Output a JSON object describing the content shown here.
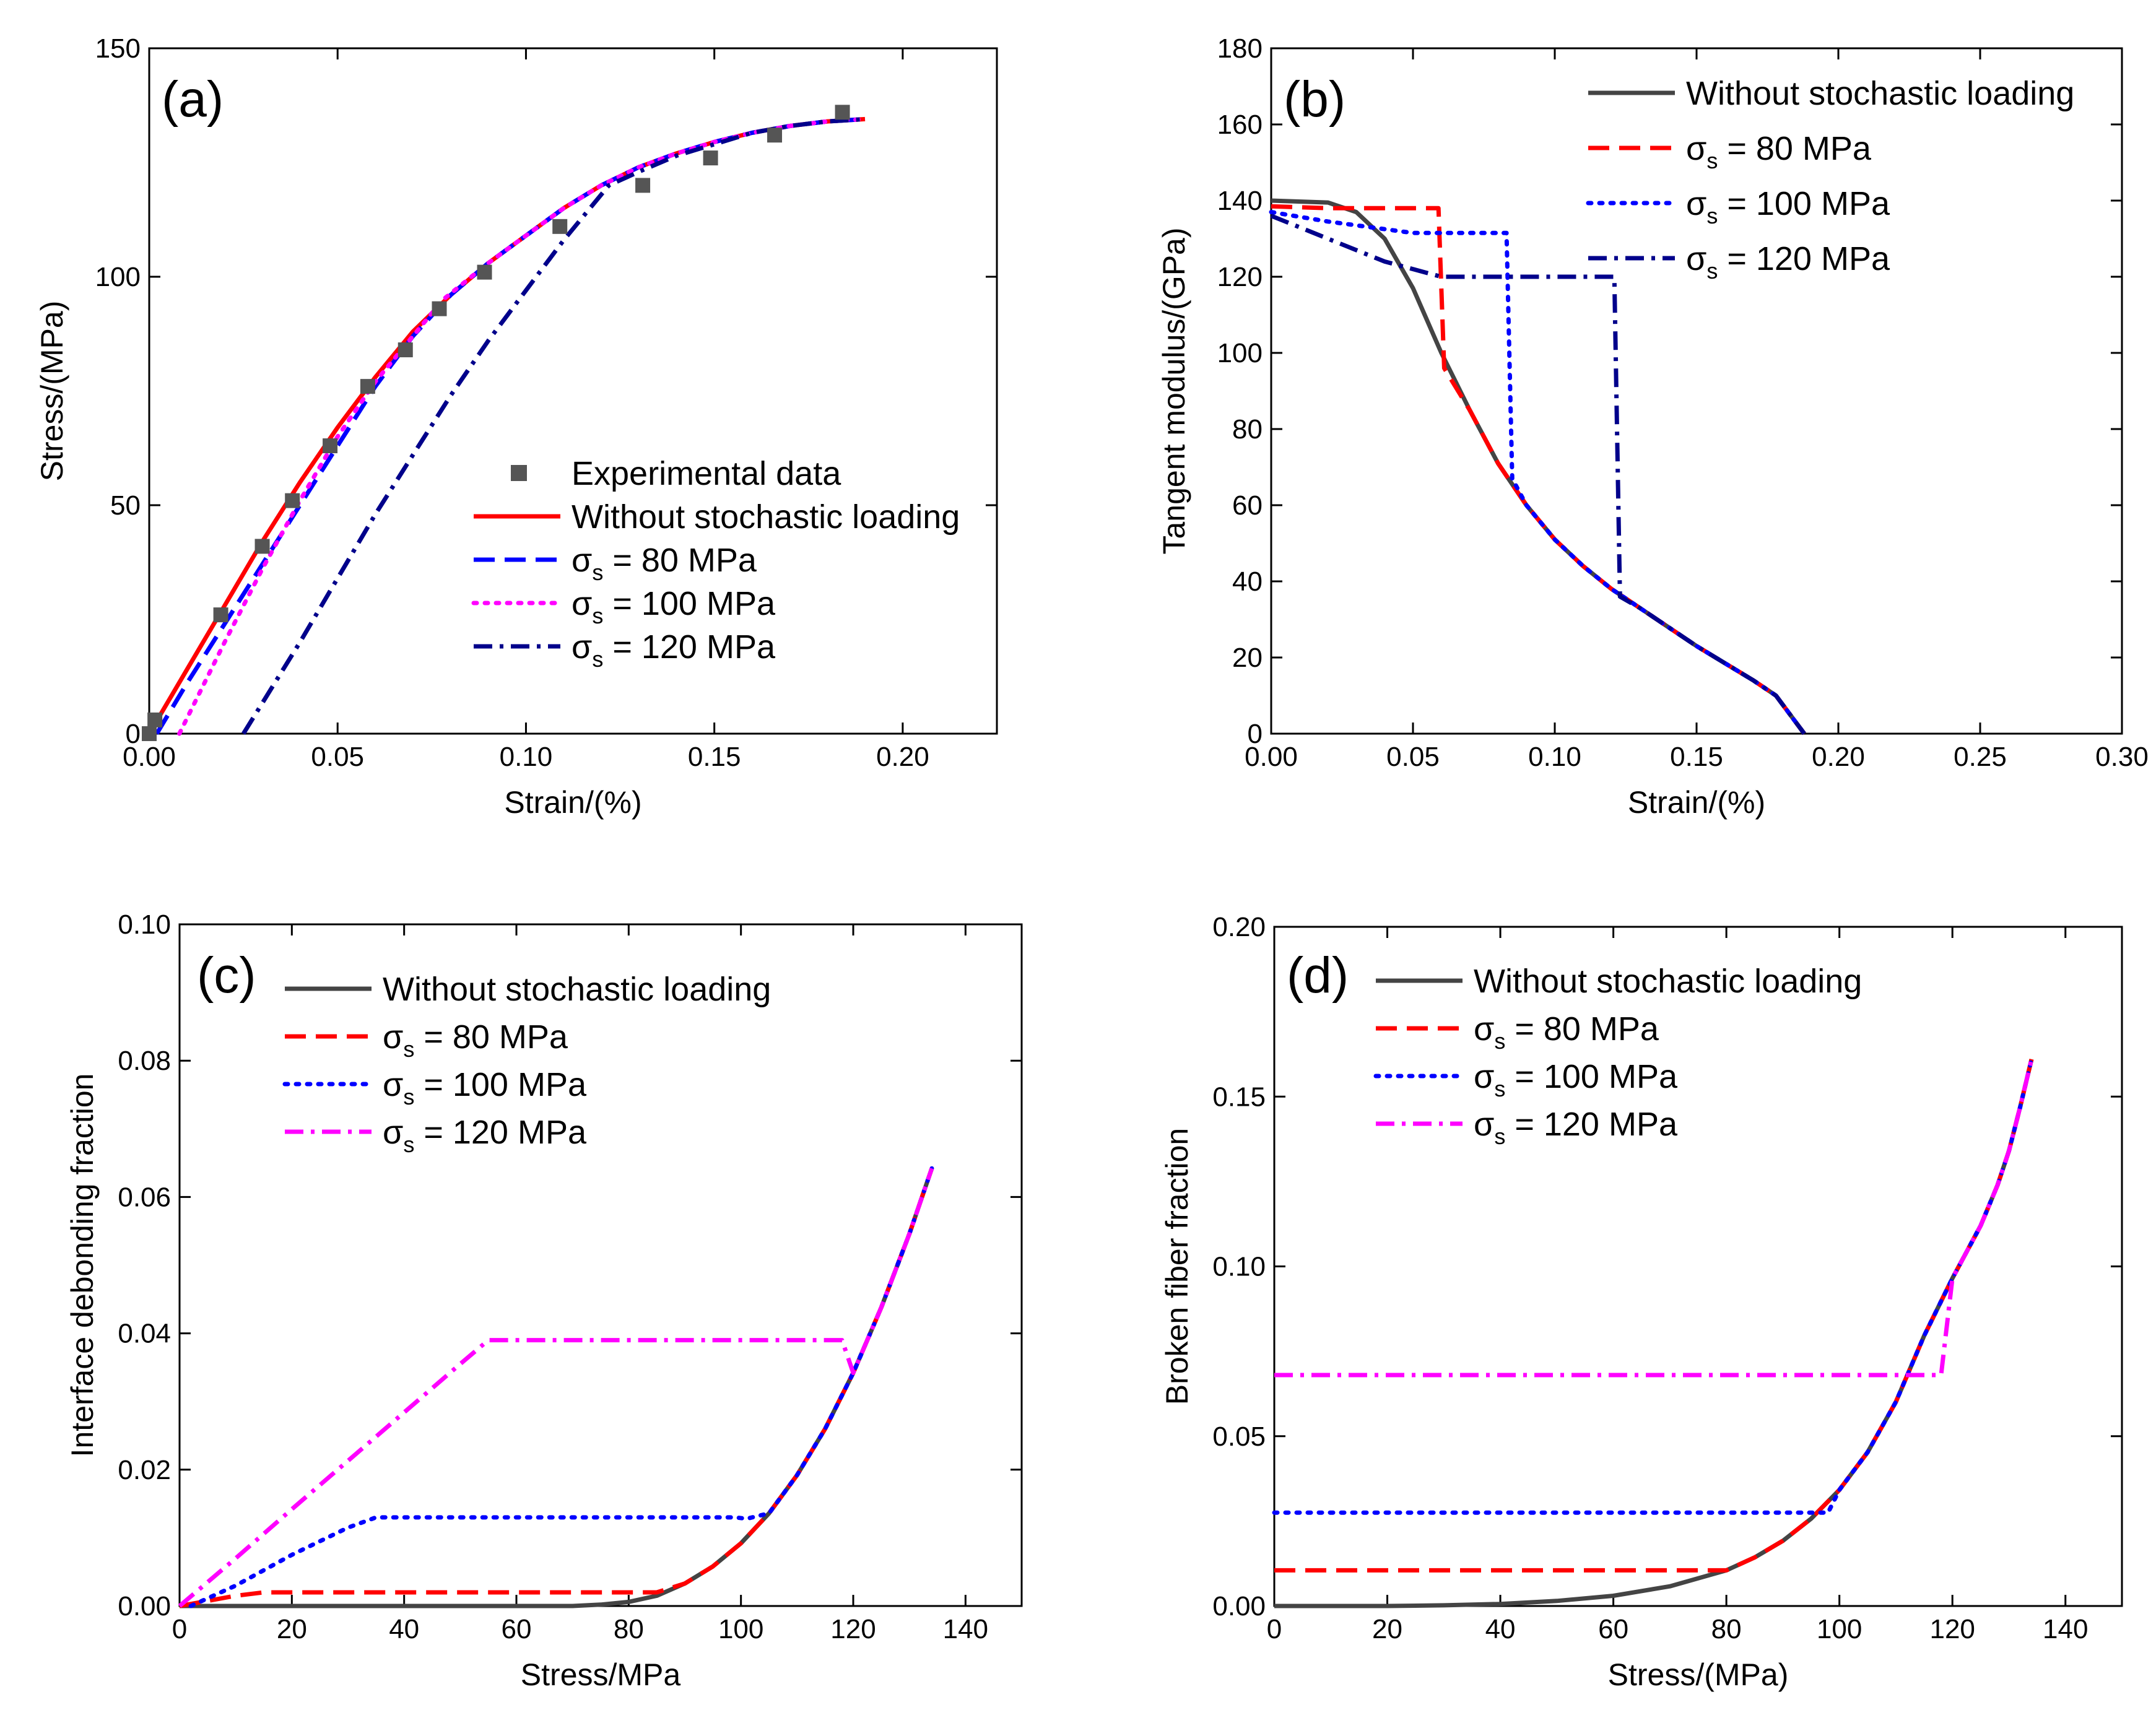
{
  "figure": {
    "colors": {
      "red": "#ff0000",
      "blue": "#0000ff",
      "magenta": "#ff00ff",
      "navy": "#00008b",
      "gray": "#444444",
      "exp": "#555555"
    }
  },
  "chart_data": [
    {
      "id": "a",
      "type": "line",
      "panel_label": "(a)",
      "xlabel": "Strain/(%)",
      "ylabel": "Stress/(MPa)",
      "xlim": [
        0,
        0.225
      ],
      "ylim": [
        0,
        150
      ],
      "xticks": [
        0,
        0.05,
        0.1,
        0.15,
        0.2
      ],
      "xtick_labels": [
        "0.00",
        "0.05",
        "0.10",
        "0.15",
        "0.20"
      ],
      "yticks": [
        0,
        50,
        100,
        150
      ],
      "ytick_labels": [
        "0",
        "50",
        "100",
        "150"
      ],
      "legend_position": "bottom-right",
      "scatter": {
        "name": "Experimental data",
        "color": "#555555",
        "x": [
          0.0,
          0.0015,
          0.019,
          0.03,
          0.038,
          0.048,
          0.058,
          0.068,
          0.077,
          0.089,
          0.109,
          0.131,
          0.149,
          0.166,
          0.184
        ],
        "y": [
          0,
          3,
          26,
          41,
          51,
          63,
          76,
          84,
          93,
          101,
          111,
          120,
          126,
          131,
          136
        ]
      },
      "series": [
        {
          "name": "Without stochastic loading",
          "color": "#ff0000",
          "dash": "solid",
          "x": [
            0.0,
            0.01,
            0.02,
            0.03,
            0.04,
            0.05,
            0.06,
            0.07,
            0.08,
            0.09,
            0.1,
            0.11,
            0.12,
            0.13,
            0.14,
            0.15,
            0.16,
            0.17,
            0.18,
            0.19
          ],
          "y": [
            0,
            14,
            28,
            42,
            55,
            67,
            78,
            88,
            96,
            103,
            109,
            115,
            120,
            124,
            127,
            129.5,
            131.5,
            133,
            134,
            134.5
          ]
        },
        {
          "name": "σs = 80 MPa",
          "color": "#0000ff",
          "dash": "dashed",
          "x": [
            0.002,
            0.01,
            0.02,
            0.03,
            0.04,
            0.05,
            0.06,
            0.07,
            0.08,
            0.09,
            0.1,
            0.11,
            0.12,
            0.13,
            0.14,
            0.15,
            0.16,
            0.17,
            0.18,
            0.19
          ],
          "y": [
            0,
            11,
            24,
            37,
            50,
            63,
            76,
            87,
            96,
            103,
            109,
            115,
            120,
            124,
            127,
            129.5,
            131.5,
            133,
            134,
            134.5
          ]
        },
        {
          "name": "σs = 100 MPa",
          "color": "#ff00ff",
          "dash": "dotted",
          "x": [
            0.008,
            0.02,
            0.03,
            0.04,
            0.05,
            0.06,
            0.07,
            0.078,
            0.09,
            0.1,
            0.11,
            0.12,
            0.13,
            0.14,
            0.15,
            0.16,
            0.17,
            0.18,
            0.19
          ],
          "y": [
            0,
            20,
            36,
            51,
            65,
            77,
            87,
            95,
            103,
            109,
            115,
            120,
            124,
            127,
            129.5,
            131.5,
            133,
            134,
            134.5
          ]
        },
        {
          "name": "σs = 120 MPa",
          "color": "#00008b",
          "dash": "dashdot",
          "x": [
            0.025,
            0.04,
            0.05,
            0.06,
            0.07,
            0.08,
            0.09,
            0.1,
            0.11,
            0.122,
            0.13,
            0.14,
            0.15,
            0.16,
            0.17,
            0.18,
            0.19
          ],
          "y": [
            0,
            20,
            34,
            48,
            61,
            74,
            86,
            97,
            108,
            120,
            123,
            126.5,
            129,
            131.5,
            133,
            134,
            134.5
          ]
        }
      ],
      "legend": [
        {
          "kind": "marker",
          "label": "Experimental data",
          "color": "#555555"
        },
        {
          "kind": "line",
          "label": "Without stochastic loading",
          "color": "#ff0000",
          "dash": "solid"
        },
        {
          "kind": "line",
          "label": "= 80 MPa",
          "color": "#0000ff",
          "dash": "dashed",
          "sigma": true
        },
        {
          "kind": "line",
          "label": "= 100 MPa",
          "color": "#ff00ff",
          "dash": "dotted",
          "sigma": true
        },
        {
          "kind": "line",
          "label": "= 120 MPa",
          "color": "#00008b",
          "dash": "dashdot",
          "sigma": true
        }
      ]
    },
    {
      "id": "b",
      "type": "line",
      "panel_label": "(b)",
      "xlabel": "Strain/(%)",
      "ylabel": "Tangent modulus/(GPa)",
      "xlim": [
        0,
        0.3
      ],
      "ylim": [
        0,
        180
      ],
      "xticks": [
        0,
        0.05,
        0.1,
        0.15,
        0.2,
        0.25,
        0.3
      ],
      "xtick_labels": [
        "0.00",
        "0.05",
        "0.10",
        "0.15",
        "0.20",
        "0.25",
        "0.30"
      ],
      "yticks": [
        0,
        20,
        40,
        60,
        80,
        100,
        120,
        140,
        160,
        180
      ],
      "ytick_labels": [
        "0",
        "20",
        "40",
        "60",
        "80",
        "100",
        "120",
        "140",
        "160",
        "180"
      ],
      "legend_position": "top-right",
      "series": [
        {
          "name": "Without stochastic loading",
          "color": "#444444",
          "dash": "solid",
          "x": [
            0.0,
            0.02,
            0.03,
            0.04,
            0.05,
            0.06,
            0.07,
            0.08,
            0.09,
            0.1,
            0.11,
            0.12,
            0.13,
            0.14,
            0.15,
            0.16,
            0.17,
            0.178,
            0.188
          ],
          "y": [
            140,
            139.5,
            137,
            130,
            117,
            100,
            85,
            71,
            60,
            51,
            44,
            38,
            33,
            28,
            23,
            18.5,
            14,
            10,
            0
          ]
        },
        {
          "name": "σs = 80 MPa",
          "color": "#ff0000",
          "dash": "dashed",
          "x": [
            0.0,
            0.02,
            0.059,
            0.059,
            0.061,
            0.07,
            0.08,
            0.09,
            0.1,
            0.11,
            0.12,
            0.13,
            0.14,
            0.15,
            0.16,
            0.17,
            0.178,
            0.188
          ],
          "y": [
            138.5,
            138,
            138,
            138,
            96,
            85,
            71,
            60,
            51,
            44,
            38,
            33,
            28,
            23,
            18.5,
            14,
            10,
            0
          ]
        },
        {
          "name": "σs = 100 MPa",
          "color": "#0000ff",
          "dash": "dotted",
          "x": [
            0.0,
            0.02,
            0.04,
            0.05,
            0.083,
            0.085,
            0.09,
            0.1,
            0.11,
            0.12,
            0.13,
            0.14,
            0.15,
            0.16,
            0.17,
            0.178,
            0.188
          ],
          "y": [
            137,
            134.5,
            132.5,
            131.5,
            131.5,
            67,
            60,
            51,
            44,
            38,
            33,
            28,
            23,
            18.5,
            14,
            10,
            0
          ]
        },
        {
          "name": "σs = 120 MPa",
          "color": "#00008b",
          "dash": "dashdot",
          "x": [
            0.0,
            0.02,
            0.04,
            0.06,
            0.121,
            0.123,
            0.13,
            0.14,
            0.15,
            0.16,
            0.17,
            0.178,
            0.188
          ],
          "y": [
            136,
            130,
            124,
            120,
            120,
            36,
            33,
            28,
            23,
            18.5,
            14,
            10,
            0
          ]
        }
      ],
      "legend": [
        {
          "kind": "line",
          "label": "Without stochastic loading",
          "color": "#444444",
          "dash": "solid"
        },
        {
          "kind": "line",
          "label": "= 80 MPa",
          "color": "#ff0000",
          "dash": "dashed",
          "sigma": true
        },
        {
          "kind": "line",
          "label": "= 100 MPa",
          "color": "#0000ff",
          "dash": "dotted",
          "sigma": true
        },
        {
          "kind": "line",
          "label": "= 120 MPa",
          "color": "#00008b",
          "dash": "dashdot",
          "sigma": true
        }
      ]
    },
    {
      "id": "c",
      "type": "line",
      "panel_label": "(c)",
      "xlabel": "Stress/MPa",
      "ylabel": "Interface debonding fraction",
      "xlim": [
        0,
        150
      ],
      "ylim": [
        0,
        0.1
      ],
      "xticks": [
        0,
        20,
        40,
        60,
        80,
        100,
        120,
        140
      ],
      "xtick_labels": [
        "0",
        "20",
        "40",
        "60",
        "80",
        "100",
        "120",
        "140"
      ],
      "yticks": [
        0,
        0.02,
        0.04,
        0.06,
        0.08,
        0.1
      ],
      "ytick_labels": [
        "0.00",
        "0.02",
        "0.04",
        "0.06",
        "0.08",
        "0.10"
      ],
      "legend_position": "top-left",
      "series": [
        {
          "name": "Without stochastic loading",
          "color": "#444444",
          "dash": "solid",
          "x": [
            0,
            60,
            70,
            75,
            80,
            85,
            90,
            95,
            100,
            105,
            110,
            115,
            120,
            125,
            130,
            134
          ],
          "y": [
            0,
            0,
            0,
            0.0002,
            0.0006,
            0.0015,
            0.0033,
            0.0058,
            0.0092,
            0.0136,
            0.0192,
            0.026,
            0.0342,
            0.0438,
            0.0546,
            0.0642
          ]
        },
        {
          "name": "σs = 80 MPa",
          "color": "#ff0000",
          "dash": "dashed",
          "x": [
            0,
            10,
            15,
            80,
            85,
            90,
            95,
            100,
            105,
            110,
            115,
            120,
            125,
            130,
            134
          ],
          "y": [
            0,
            0.0015,
            0.002,
            0.002,
            0.002,
            0.0033,
            0.0058,
            0.0092,
            0.0136,
            0.0192,
            0.026,
            0.0342,
            0.0438,
            0.0546,
            0.0642
          ]
        },
        {
          "name": "σs = 100 MPa",
          "color": "#0000ff",
          "dash": "dotted",
          "x": [
            2,
            10,
            20,
            30,
            35,
            99,
            101,
            105,
            110,
            115,
            120,
            125,
            130,
            134
          ],
          "y": [
            0,
            0.003,
            0.0075,
            0.0115,
            0.013,
            0.013,
            0.0128,
            0.0136,
            0.0192,
            0.026,
            0.0342,
            0.0438,
            0.0546,
            0.0642
          ]
        },
        {
          "name": "σs = 120 MPa",
          "color": "#ff00ff",
          "dash": "dashdot",
          "x": [
            0,
            10,
            20,
            30,
            40,
            50,
            55,
            118,
            120,
            125,
            130,
            134
          ],
          "y": [
            0,
            0.007,
            0.0142,
            0.0213,
            0.0284,
            0.0355,
            0.039,
            0.039,
            0.0342,
            0.0438,
            0.0546,
            0.0642
          ]
        }
      ],
      "legend": [
        {
          "kind": "line",
          "label": "Without stochastic loading",
          "color": "#444444",
          "dash": "solid"
        },
        {
          "kind": "line",
          "label": "= 80 MPa",
          "color": "#ff0000",
          "dash": "dashed",
          "sigma": true
        },
        {
          "kind": "line",
          "label": "= 100 MPa",
          "color": "#0000ff",
          "dash": "dotted",
          "sigma": true
        },
        {
          "kind": "line",
          "label": "= 120 MPa",
          "color": "#ff00ff",
          "dash": "dashdot",
          "sigma": true
        }
      ]
    },
    {
      "id": "d",
      "type": "line",
      "panel_label": "(d)",
      "xlabel": "Stress/(MPa)",
      "ylabel": "Broken fiber fraction",
      "xlim": [
        0,
        150
      ],
      "ylim": [
        0,
        0.2
      ],
      "xticks": [
        0,
        20,
        40,
        60,
        80,
        100,
        120,
        140
      ],
      "xtick_labels": [
        "0",
        "20",
        "40",
        "60",
        "80",
        "100",
        "120",
        "140"
      ],
      "yticks": [
        0,
        0.05,
        0.1,
        0.15,
        0.2
      ],
      "ytick_labels": [
        "0.00",
        "0.05",
        "0.10",
        "0.15",
        "0.20"
      ],
      "legend_position": "top-left",
      "series": [
        {
          "name": "Without stochastic loading",
          "color": "#444444",
          "dash": "solid",
          "x": [
            0,
            20,
            30,
            40,
            50,
            60,
            70,
            80,
            85,
            90,
            95,
            100,
            105,
            110,
            115,
            120,
            125,
            128,
            130,
            132,
            134
          ],
          "y": [
            0,
            0,
            0.0002,
            0.0006,
            0.0015,
            0.003,
            0.0058,
            0.0105,
            0.0143,
            0.0192,
            0.0257,
            0.0342,
            0.0453,
            0.0601,
            0.0796,
            0.0965,
            0.112,
            0.124,
            0.134,
            0.147,
            0.161
          ]
        },
        {
          "name": "σs = 80 MPa",
          "color": "#ff0000",
          "dash": "dashed",
          "x": [
            0,
            78,
            80,
            85,
            90,
            95,
            100,
            105,
            110,
            115,
            120,
            125,
            128,
            130,
            132,
            134
          ],
          "y": [
            0.0105,
            0.0105,
            0.0105,
            0.0143,
            0.0192,
            0.0257,
            0.0342,
            0.0453,
            0.0601,
            0.0796,
            0.0965,
            0.112,
            0.124,
            0.134,
            0.147,
            0.161
          ]
        },
        {
          "name": "σs = 100 MPa",
          "color": "#0000ff",
          "dash": "dotted",
          "x": [
            0,
            98,
            100,
            105,
            110,
            115,
            120,
            125,
            128,
            130,
            132,
            134
          ],
          "y": [
            0.0275,
            0.0275,
            0.0342,
            0.0453,
            0.0601,
            0.0796,
            0.0965,
            0.112,
            0.124,
            0.134,
            0.147,
            0.161
          ]
        },
        {
          "name": "σs = 120 MPa",
          "color": "#ff00ff",
          "dash": "dashdot",
          "x": [
            0,
            118,
            120,
            125,
            128,
            130,
            132,
            134
          ],
          "y": [
            0.068,
            0.068,
            0.0965,
            0.112,
            0.124,
            0.134,
            0.147,
            0.161
          ]
        }
      ],
      "legend": [
        {
          "kind": "line",
          "label": "Without stochastic loading",
          "color": "#444444",
          "dash": "solid"
        },
        {
          "kind": "line",
          "label": "= 80 MPa",
          "color": "#ff0000",
          "dash": "dashed",
          "sigma": true
        },
        {
          "kind": "line",
          "label": "= 100 MPa",
          "color": "#0000ff",
          "dash": "dotted",
          "sigma": true
        },
        {
          "kind": "line",
          "label": "= 120 MPa",
          "color": "#ff00ff",
          "dash": "dashdot",
          "sigma": true
        }
      ]
    }
  ]
}
